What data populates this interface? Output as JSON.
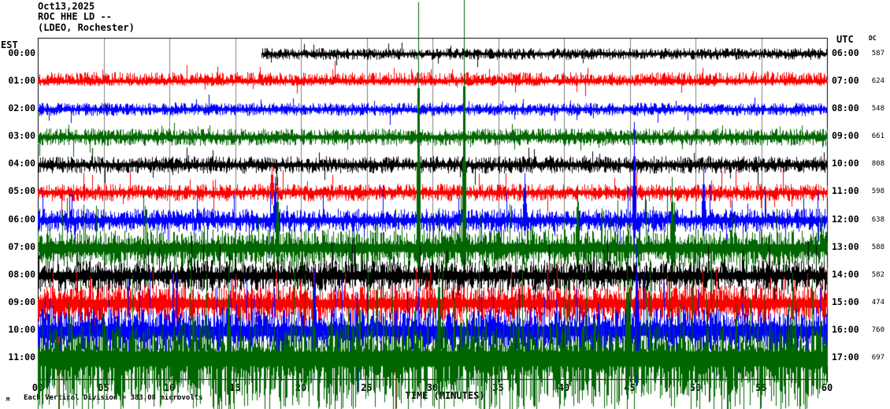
{
  "header": {
    "date": "Oct13,2025",
    "station": "ROC HHE LD --",
    "location": "(LDEO, Rochester)"
  },
  "axis": {
    "left_tz": "EST",
    "right_tz": "UTC",
    "dc_header": "DC",
    "x_title": "TIME (MINUTES)",
    "x_ticks": [
      "00",
      "05",
      "10",
      "15",
      "20",
      "25",
      "30",
      "35",
      "40",
      "45",
      "50",
      "55",
      "60"
    ]
  },
  "footer": {
    "marker": "M",
    "scale_note": "Each Vertical Division = 383.08 microvolts"
  },
  "colors": {
    "black": "#000000",
    "red": "#ff0000",
    "blue": "#0000ff",
    "green": "#006600",
    "grid": "#808080",
    "background": "#ffffff"
  },
  "chart_data": {
    "type": "line",
    "kind": "helicorder-seismogram",
    "title": "ROC HHE LD -- (LDEO, Rochester) Oct13,2025",
    "xlabel": "TIME (MINUTES)",
    "x_range_minutes": [
      0,
      60
    ],
    "grid_interval_minutes": 5,
    "rows": [
      {
        "est": "00:00",
        "utc": "06:00",
        "dc": 587,
        "color": "black",
        "start_min": 17,
        "amp": 4,
        "spike_p": 0.02,
        "spike_amp": 12
      },
      {
        "est": "01:00",
        "utc": "07:00",
        "dc": 624,
        "color": "red",
        "start_min": 0,
        "amp": 5,
        "spike_p": 0.03,
        "spike_amp": 15,
        "up_bias": 1.35,
        "down_bias": 0.6
      },
      {
        "est": "02:00",
        "utc": "08:00",
        "dc": 548,
        "color": "blue",
        "start_min": 0,
        "amp": 4.5,
        "spike_p": 0.03,
        "spike_amp": 14
      },
      {
        "est": "03:00",
        "utc": "09:00",
        "dc": 661,
        "color": "green",
        "start_min": 0,
        "amp": 6,
        "spike_p": 0.03,
        "spike_amp": 16
      },
      {
        "est": "04:00",
        "utc": "10:00",
        "dc": 808,
        "color": "black",
        "start_min": 0,
        "amp": 6,
        "spike_p": 0.03,
        "spike_amp": 18
      },
      {
        "est": "05:00",
        "utc": "11:00",
        "dc": 598,
        "color": "red",
        "start_min": 0,
        "amp": 6,
        "spike_p": 0.04,
        "spike_amp": 25
      },
      {
        "est": "06:00",
        "utc": "12:00",
        "dc": 638,
        "color": "blue",
        "start_min": 0,
        "amp": 8,
        "spike_p": 0.06,
        "spike_amp": 35
      },
      {
        "est": "07:00",
        "utc": "13:00",
        "dc": 588,
        "color": "green",
        "start_min": 0,
        "amp": 13,
        "spike_p": 0.1,
        "spike_amp": 50
      },
      {
        "est": "08:00",
        "utc": "14:00",
        "dc": 582,
        "color": "black",
        "start_min": 0,
        "amp": 11,
        "spike_p": 0.07,
        "spike_amp": 35
      },
      {
        "est": "09:00",
        "utc": "15:00",
        "dc": 474,
        "color": "red",
        "start_min": 0,
        "amp": 13,
        "spike_p": 0.08,
        "spike_amp": 40
      },
      {
        "est": "10:00",
        "utc": "16:00",
        "dc": 760,
        "color": "blue",
        "start_min": 0,
        "amp": 16,
        "spike_p": 0.1,
        "spike_amp": 60
      },
      {
        "est": "11:00",
        "utc": "17:00",
        "dc": 697,
        "color": "green",
        "start_min": 0,
        "amp": 26,
        "spike_p": 0.15,
        "spike_amp": 90,
        "down_curtain_p": 0.3
      }
    ],
    "events": [
      {
        "row": 5,
        "min": 17.8,
        "up": 35,
        "down": 12
      },
      {
        "row": 6,
        "min": 18.0,
        "up": 55,
        "down": 15
      },
      {
        "row": 6,
        "min": 37.0,
        "up": 60,
        "down": 20
      },
      {
        "row": 6,
        "min": 45.3,
        "up": 125,
        "down": 35
      },
      {
        "row": 6,
        "min": 50.6,
        "up": 70,
        "down": 20
      },
      {
        "row": 7,
        "min": 18.2,
        "up": 90,
        "down": 30
      },
      {
        "row": 7,
        "min": 28.9,
        "up": 312,
        "down": 55
      },
      {
        "row": 7,
        "min": 32.4,
        "up": 316,
        "down": 60
      },
      {
        "row": 7,
        "min": 41.0,
        "up": 80,
        "down": 40
      },
      {
        "row": 7,
        "min": 48.2,
        "up": 90,
        "down": 40
      },
      {
        "row": 9,
        "min": 1.6,
        "up": 20,
        "down": 135
      },
      {
        "row": 9,
        "min": 27.2,
        "up": 25,
        "down": 135
      },
      {
        "row": 10,
        "min": 21.0,
        "up": 80,
        "down": 60
      },
      {
        "row": 10,
        "min": 45.5,
        "up": 110,
        "down": 70
      },
      {
        "row": 11,
        "min": 14.5,
        "up": 120,
        "down": 70
      },
      {
        "row": 11,
        "min": 30.5,
        "up": 140,
        "down": 70
      },
      {
        "row": 11,
        "min": 44.8,
        "up": 130,
        "down": 70
      }
    ]
  }
}
